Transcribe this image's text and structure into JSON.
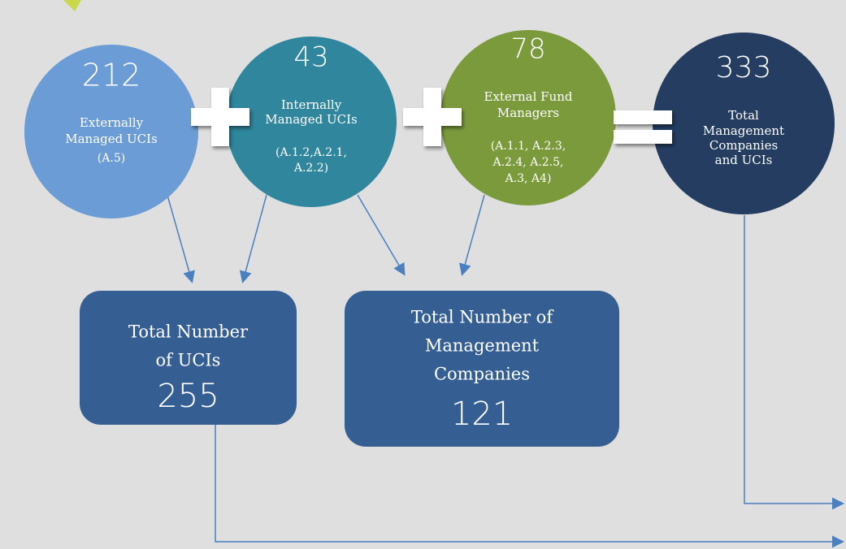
{
  "circles": [
    {
      "value": 212,
      "label": [
        "Externally",
        "Managed UCIs"
      ],
      "code": [
        "(A.5)"
      ]
    },
    {
      "value": 43,
      "label": [
        "Internally",
        "Managed UCIs"
      ],
      "code": [
        "(A.1.2,A.2.1,",
        "A.2.2)"
      ]
    },
    {
      "value": 78,
      "label": [
        "External Fund",
        "Managers"
      ],
      "code": [
        "(A.1.1, A.2.3,",
        "A.2.4, A.2.5,",
        "A.3, A4)"
      ]
    },
    {
      "value": 333,
      "label": [
        "Total",
        "Management",
        "Companies",
        "and UCIs"
      ],
      "code": []
    }
  ],
  "boxes": [
    {
      "label": [
        "Total Number",
        "of UCIs"
      ],
      "value": 255
    },
    {
      "label": [
        "Total Number of",
        "Management",
        "Companies"
      ],
      "value": 121
    }
  ]
}
